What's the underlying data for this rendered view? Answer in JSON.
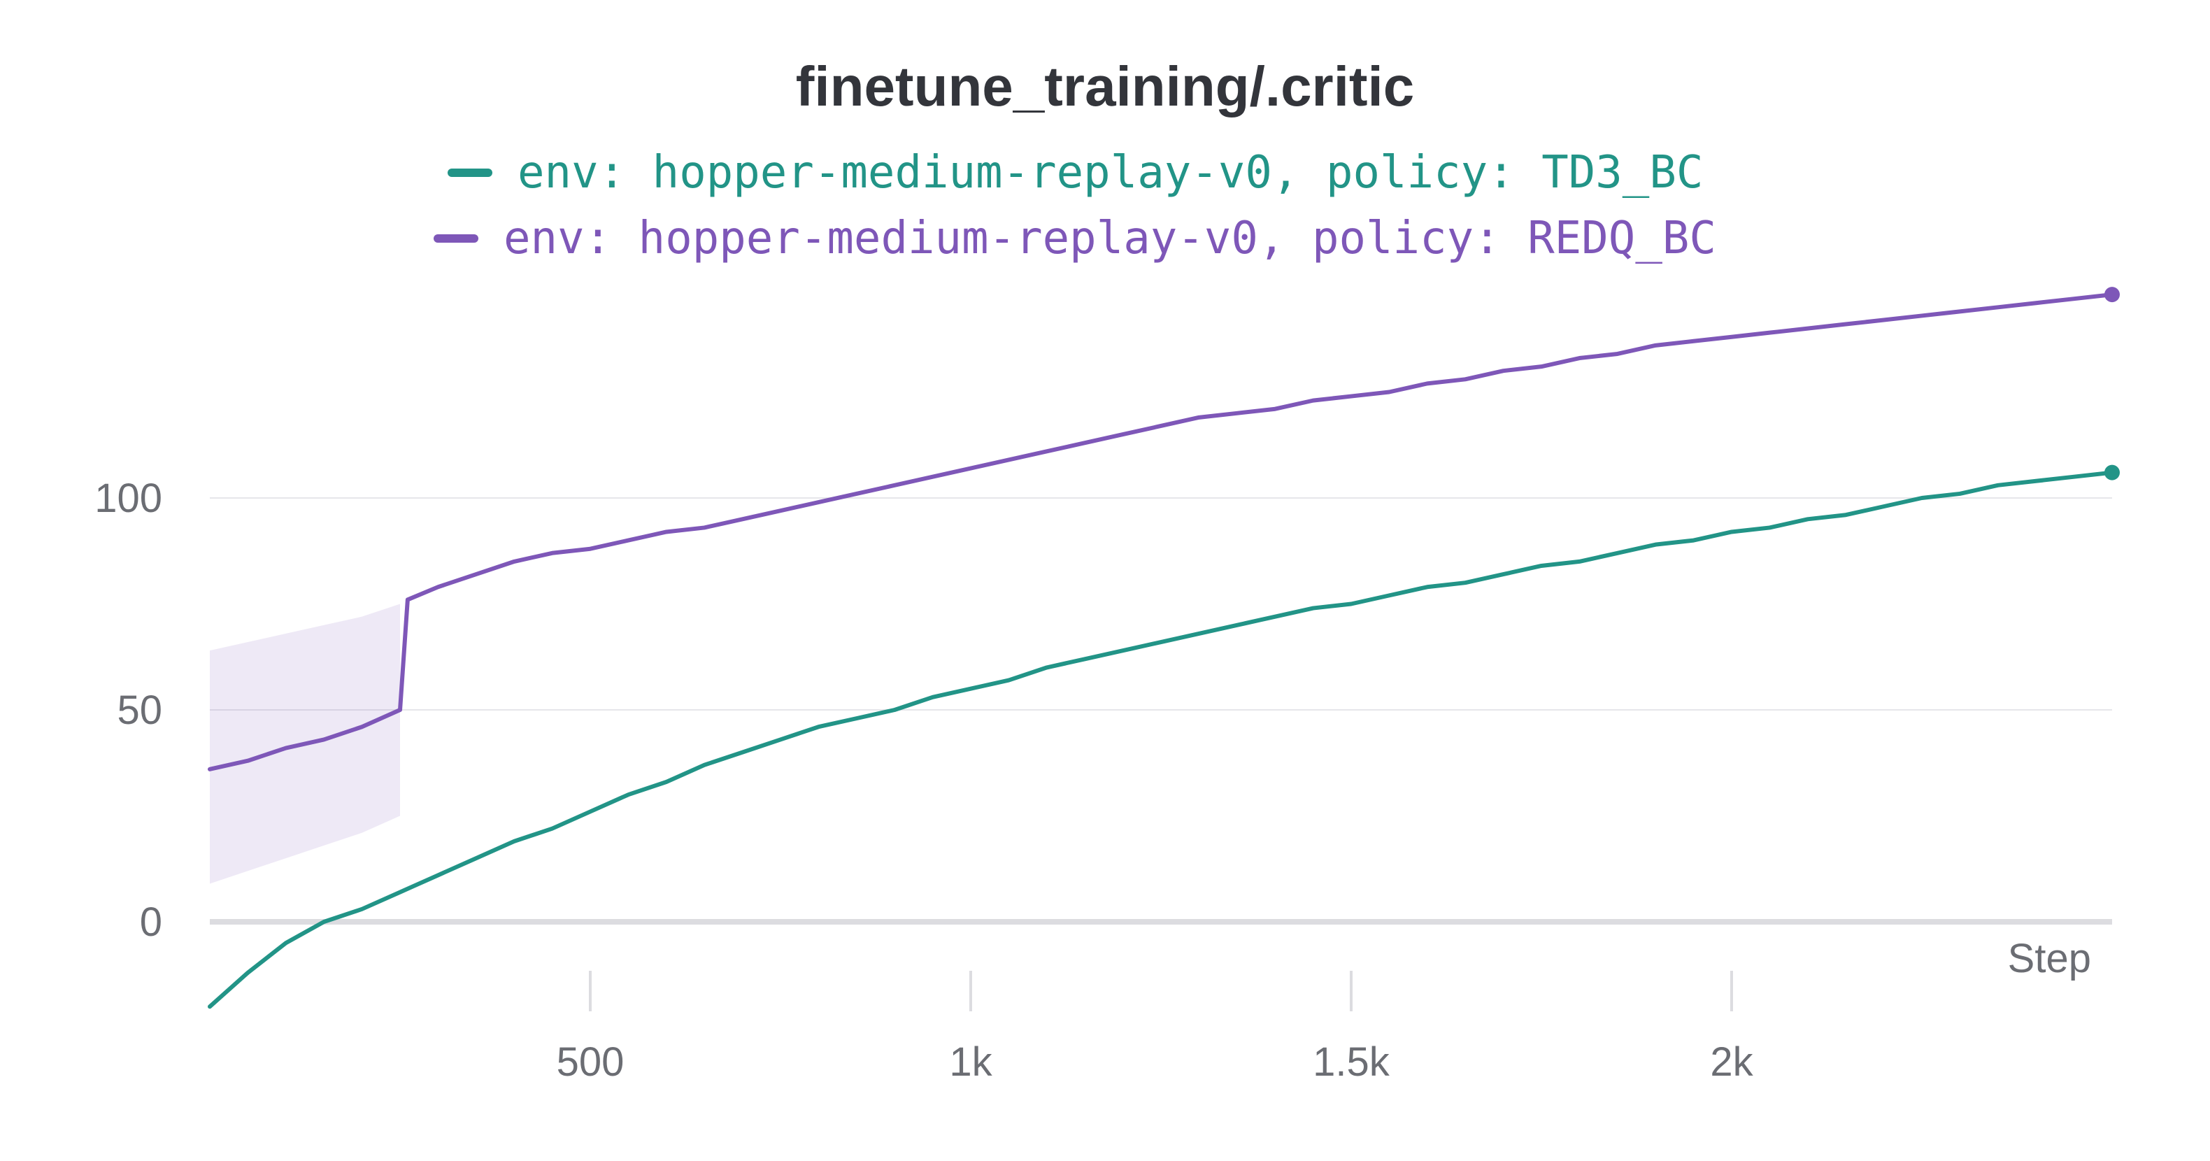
{
  "chart_data": {
    "type": "line",
    "title": "finetune_training/.critic",
    "xlabel": "Step",
    "ylabel": "",
    "xlim": [
      0,
      2500
    ],
    "ylim": [
      -20,
      150
    ],
    "x_ticks": [
      500,
      1000,
      1500,
      2000
    ],
    "x_tick_labels": [
      "500",
      "1k",
      "1.5k",
      "2k"
    ],
    "y_ticks": [
      0,
      50,
      100
    ],
    "y_tick_labels": [
      "0",
      "50",
      "100"
    ],
    "grid": true,
    "legend_position": "top-center",
    "series": [
      {
        "name": "env: hopper-medium-replay-v0, policy: TD3_BC",
        "color": "#229487",
        "x": [
          0,
          50,
          100,
          150,
          200,
          250,
          300,
          350,
          400,
          450,
          500,
          550,
          600,
          650,
          700,
          750,
          800,
          850,
          900,
          950,
          1000,
          1050,
          1100,
          1150,
          1200,
          1250,
          1300,
          1350,
          1400,
          1450,
          1500,
          1550,
          1600,
          1650,
          1700,
          1750,
          1800,
          1850,
          1900,
          1950,
          2000,
          2050,
          2100,
          2150,
          2200,
          2250,
          2300,
          2350,
          2400,
          2450,
          2500
        ],
        "y": [
          -20,
          -12,
          -5,
          0,
          3,
          7,
          11,
          15,
          19,
          22,
          26,
          30,
          33,
          37,
          40,
          43,
          46,
          48,
          50,
          53,
          55,
          57,
          60,
          62,
          64,
          66,
          68,
          70,
          72,
          74,
          75,
          77,
          79,
          80,
          82,
          84,
          85,
          87,
          89,
          90,
          92,
          93,
          95,
          96,
          98,
          100,
          101,
          103,
          104,
          105,
          106
        ]
      },
      {
        "name": "env: hopper-medium-replay-v0, policy: REDQ_BC",
        "color": "#7e57b8",
        "x": [
          0,
          50,
          100,
          150,
          200,
          250,
          260,
          300,
          350,
          400,
          450,
          500,
          550,
          600,
          650,
          700,
          750,
          800,
          850,
          900,
          950,
          1000,
          1050,
          1100,
          1150,
          1200,
          1250,
          1300,
          1350,
          1400,
          1450,
          1500,
          1550,
          1600,
          1650,
          1700,
          1750,
          1800,
          1850,
          1900,
          1950,
          2000,
          2050,
          2100,
          2150,
          2200,
          2250,
          2300,
          2350,
          2400,
          2450,
          2500
        ],
        "y": [
          36,
          38,
          41,
          43,
          46,
          50,
          76,
          79,
          82,
          85,
          87,
          88,
          90,
          92,
          93,
          95,
          97,
          99,
          101,
          103,
          105,
          107,
          109,
          111,
          113,
          115,
          117,
          119,
          120,
          121,
          123,
          124,
          125,
          127,
          128,
          130,
          131,
          133,
          134,
          136,
          137,
          138,
          139,
          140,
          141,
          142,
          143,
          144,
          145,
          146,
          147,
          148
        ],
        "band": {
          "x": [
            0,
            50,
            100,
            150,
            200,
            250
          ],
          "upper": [
            64,
            66,
            68,
            70,
            72,
            75
          ],
          "lower": [
            9,
            12,
            15,
            18,
            21,
            25
          ]
        }
      }
    ]
  }
}
